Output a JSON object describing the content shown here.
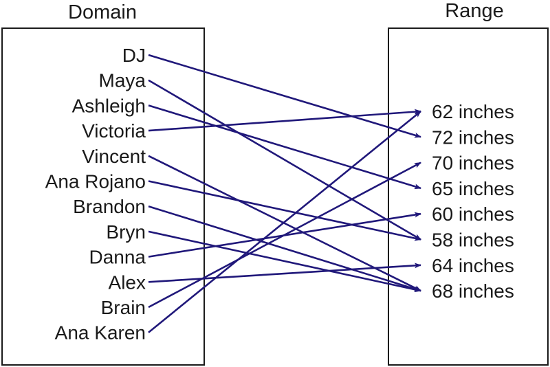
{
  "domain": {
    "title": "Domain",
    "names": [
      "DJ",
      "Maya",
      "Ashleigh",
      "Victoria",
      "Vincent",
      "Ana Rojano",
      "Brandon",
      "Bryn",
      "Danna",
      "Alex",
      "Brain",
      "Ana Karen"
    ]
  },
  "range": {
    "title": "Range",
    "values": [
      "62 inches",
      "72 inches",
      "70 inches",
      "65 inches",
      "60 inches",
      "58 inches",
      "64 inches",
      "68 inches"
    ]
  },
  "mapping": [
    {
      "from": "DJ",
      "to": "72 inches"
    },
    {
      "from": "Maya",
      "to": "58 inches"
    },
    {
      "from": "Ashleigh",
      "to": "65 inches"
    },
    {
      "from": "Victoria",
      "to": "62 inches"
    },
    {
      "from": "Vincent",
      "to": "68 inches"
    },
    {
      "from": "Ana Rojano",
      "to": "58 inches"
    },
    {
      "from": "Brandon",
      "to": "68 inches"
    },
    {
      "from": "Bryn",
      "to": "68 inches"
    },
    {
      "from": "Danna",
      "to": "60 inches"
    },
    {
      "from": "Alex",
      "to": "64 inches"
    },
    {
      "from": "Brain",
      "to": "70 inches"
    },
    {
      "from": "Ana Karen",
      "to": "62 inches"
    }
  ],
  "colors": {
    "arrow": "#20187a",
    "text": "#1a1a1a",
    "box": "#1a1a1a"
  }
}
